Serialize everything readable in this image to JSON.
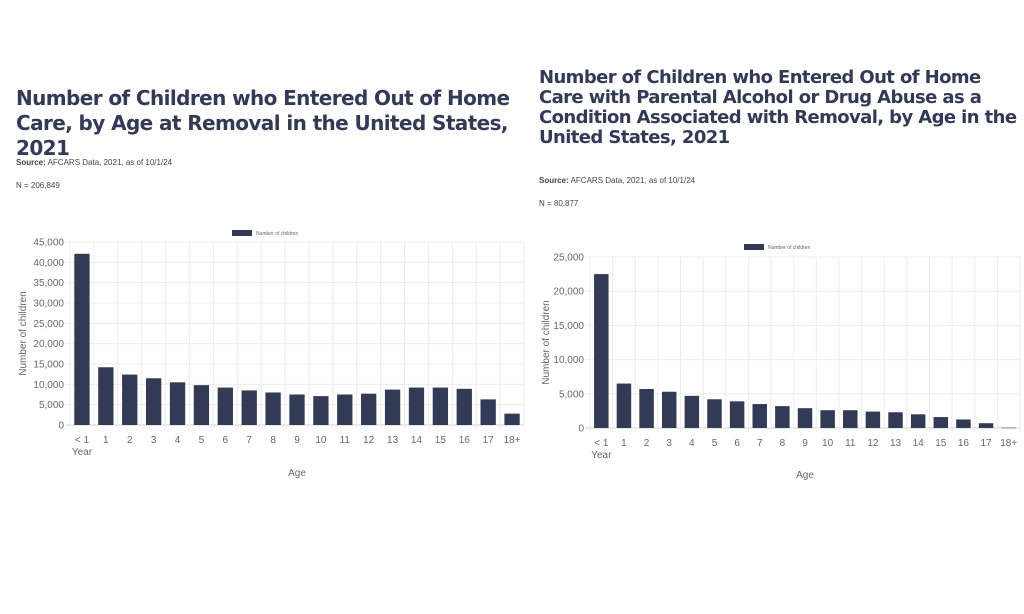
{
  "left": {
    "title": "Number of Children who Entered Out of Home Care, by Age at Removal in the United States, 2021",
    "source_label": "Source:",
    "source_text": " AFCARS Data, 2021, as of 10/1/24",
    "n_text": "N = 206,849"
  },
  "right": {
    "title": "Number of Children who Entered Out of Home Care with Parental Alcohol or Drug Abuse as a Condition Associated with Removal, by Age in the United States, 2021",
    "source_label": "Source:",
    "source_text": " AFCARS Data, 2021, as of 10/1/24",
    "n_text": "N = 80,877"
  },
  "chart_data": [
    {
      "type": "bar",
      "title": "Number of Children who Entered Out of Home Care, by Age at Removal in the United States, 2021",
      "categories": [
        "< 1 Year",
        "1",
        "2",
        "3",
        "4",
        "5",
        "6",
        "7",
        "8",
        "9",
        "10",
        "11",
        "12",
        "13",
        "14",
        "15",
        "16",
        "17",
        "18+"
      ],
      "series": [
        {
          "name": "Number of children",
          "color": "#333a56",
          "values": [
            42100,
            14200,
            12400,
            11500,
            10500,
            9800,
            9200,
            8500,
            8000,
            7500,
            7100,
            7500,
            7700,
            8700,
            9200,
            9200,
            8900,
            6300,
            2800
          ]
        }
      ],
      "xlabel": "Age",
      "ylabel": "Number of children",
      "ylim": [
        0,
        45000
      ],
      "yticks": [
        0,
        5000,
        10000,
        15000,
        20000,
        25000,
        30000,
        35000,
        40000,
        45000
      ],
      "ytick_labels": [
        "0",
        "5,000",
        "10,000",
        "15,000",
        "20,000",
        "25,000",
        "30,000",
        "35,000",
        "40,000",
        "45,000"
      ],
      "grid": true,
      "legend_position": "top-center"
    },
    {
      "type": "bar",
      "title": "Number of Children who Entered Out of Home Care with Parental Alcohol or Drug Abuse as a Condition Associated with Removal, by Age in the United States, 2021",
      "categories": [
        "< 1 Year",
        "1",
        "2",
        "3",
        "4",
        "5",
        "6",
        "7",
        "8",
        "9",
        "10",
        "11",
        "12",
        "13",
        "14",
        "15",
        "16",
        "17",
        "18+"
      ],
      "series": [
        {
          "name": "Number of children",
          "color": "#333a56",
          "values": [
            22500,
            6500,
            5700,
            5300,
            4700,
            4200,
            3900,
            3500,
            3200,
            2900,
            2600,
            2600,
            2400,
            2300,
            2000,
            1600,
            1250,
            700,
            50
          ]
        }
      ],
      "xlabel": "Age",
      "ylabel": "Number of children",
      "ylim": [
        0,
        25000
      ],
      "yticks": [
        0,
        5000,
        10000,
        15000,
        20000,
        25000
      ],
      "ytick_labels": [
        "0",
        "5,000",
        "10,000",
        "15,000",
        "20,000",
        "25,000"
      ],
      "grid": true,
      "legend_position": "top-center"
    }
  ]
}
